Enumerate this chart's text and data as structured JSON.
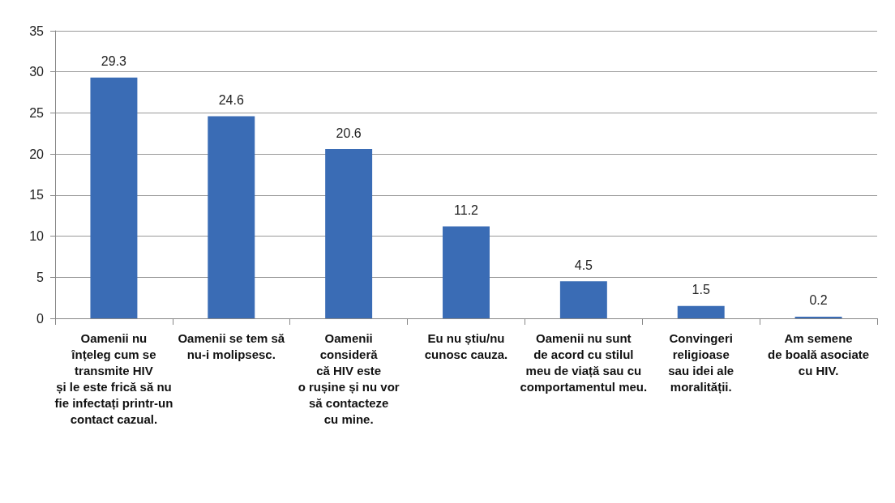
{
  "chart_data": {
    "type": "bar",
    "categories": [
      "Oamenii nu\nînțeleg cum se\ntransmite HIV\nși le este frică să nu\nfie infectați printr-un\ncontact cazual.",
      "Oamenii se tem să\nnu-i molipsesc.",
      "Oamenii\nconsideră\ncă HIV este\no rușine și nu vor\nsă contacteze\ncu mine.",
      "Eu nu știu/nu\ncunosc cauza.",
      "Oamenii nu sunt\nde acord cu stilul\nmeu de viață sau cu\ncomportamentul meu.",
      "Convingeri\nreligioase\nsau idei ale\nmoralității.",
      "Am semene\nde boală asociate\ncu HIV."
    ],
    "values": [
      29.3,
      24.6,
      20.6,
      11.2,
      4.5,
      1.5,
      0.2
    ],
    "color": "#3a6cb5",
    "ylim": [
      0,
      35
    ],
    "yticks": [
      0,
      5,
      10,
      15,
      20,
      25,
      30,
      35
    ],
    "grid": "y",
    "data_labels": true
  }
}
